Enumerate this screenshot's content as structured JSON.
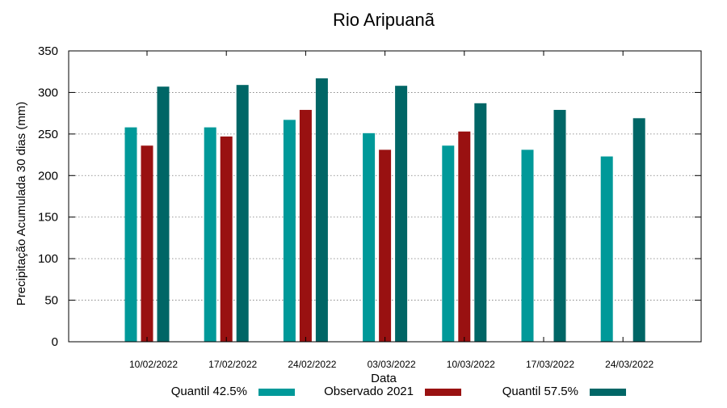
{
  "chart_data": {
    "type": "bar",
    "title": "Rio Aripuanã",
    "xlabel": "Data",
    "ylabel": "Precipitação Acumulada 30 dias (mm)",
    "ylim": [
      0,
      350
    ],
    "yticks": [
      0,
      50,
      100,
      150,
      200,
      250,
      300,
      350
    ],
    "grid": true,
    "legend_position": "bottom",
    "categories": [
      "10/02/2022",
      "17/02/2022",
      "24/02/2022",
      "03/03/2022",
      "10/03/2022",
      "17/03/2022",
      "24/03/2022"
    ],
    "series": [
      {
        "name": "Quantil 42.5%",
        "color": "#009999",
        "values": [
          258,
          258,
          267,
          251,
          236,
          231,
          223
        ]
      },
      {
        "name": "Observado 2021",
        "color": "#991111",
        "values": [
          236,
          247,
          279,
          231,
          253,
          null,
          null
        ]
      },
      {
        "name": "Quantil 57.5%",
        "color": "#006666",
        "values": [
          307,
          309,
          317,
          308,
          287,
          279,
          269
        ]
      }
    ]
  }
}
